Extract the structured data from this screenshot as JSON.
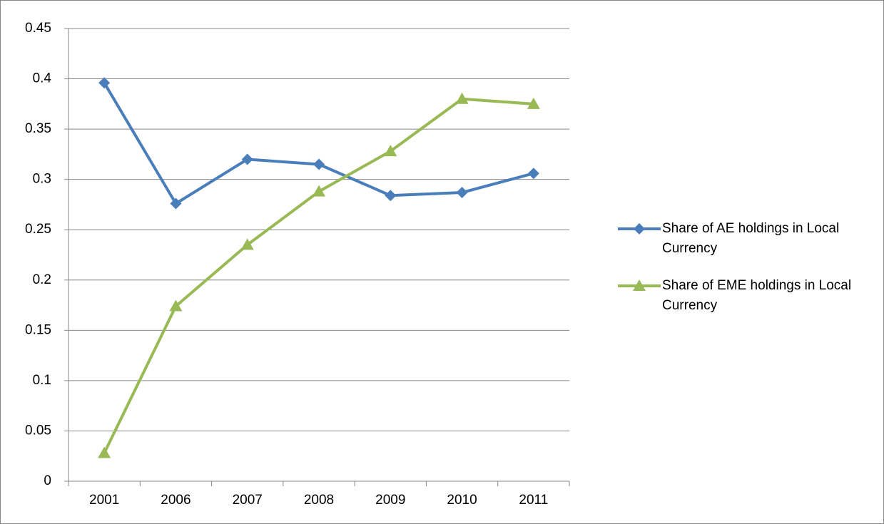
{
  "chart_data": {
    "type": "line",
    "categories": [
      "2001",
      "2006",
      "2007",
      "2008",
      "2009",
      "2010",
      "2011"
    ],
    "series": [
      {
        "name": "Share of AE holdings in Local Currency",
        "color": "#4a7ebb",
        "marker": "diamond",
        "values": [
          0.396,
          0.276,
          0.32,
          0.315,
          0.284,
          0.287,
          0.306
        ]
      },
      {
        "name": "Share of EME holdings in Local Currency",
        "color": "#98b954",
        "marker": "triangle",
        "values": [
          0.028,
          0.174,
          0.235,
          0.288,
          0.328,
          0.38,
          0.375
        ]
      }
    ],
    "ylim": [
      0,
      0.45
    ],
    "yticks": [
      0,
      0.05,
      0.1,
      0.15,
      0.2,
      0.25,
      0.3,
      0.35,
      0.4,
      0.45
    ],
    "grid": true,
    "legend": "right"
  }
}
